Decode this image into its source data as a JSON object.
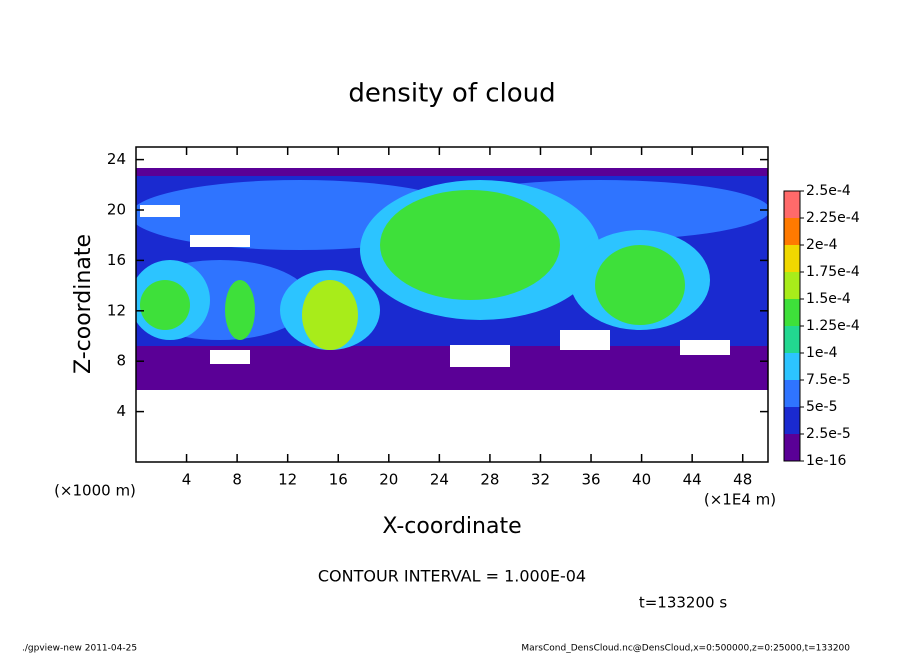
{
  "chart_data": {
    "type": "contour",
    "title": "density of cloud",
    "x_label": "X-coordinate",
    "y_label": "Z-coordinate",
    "x_unit": "(×1E4 m)",
    "y_unit": "(×1000 m)",
    "xlim": [
      0,
      50
    ],
    "xticks": [
      4,
      8,
      12,
      16,
      20,
      24,
      28,
      32,
      36,
      40,
      44,
      48
    ],
    "ylim": [
      0,
      25
    ],
    "yticks": [
      4,
      8,
      12,
      16,
      20,
      24
    ],
    "contour_note": "CONTOUR INTERVAL = 1.000E-04",
    "time_note": "t=133200 s",
    "colorbar": {
      "levels": [
        {
          "value": 1e-16,
          "label": "1e-16"
        },
        {
          "value": 2.5e-05,
          "label": "2.5e-5"
        },
        {
          "value": 5e-05,
          "label": "5e-5"
        },
        {
          "value": 7.5e-05,
          "label": "7.5e-5"
        },
        {
          "value": 0.0001,
          "label": "1e-4"
        },
        {
          "value": 0.000125,
          "label": "1.25e-4"
        },
        {
          "value": 0.00015,
          "label": "1.5e-4"
        },
        {
          "value": 0.000175,
          "label": "1.75e-4"
        },
        {
          "value": 0.0002,
          "label": "2e-4"
        },
        {
          "value": 0.000225,
          "label": "2.25e-4"
        },
        {
          "value": 0.00025,
          "label": "2.5e-4"
        }
      ],
      "colors": [
        "#5a0096",
        "#1a2ad0",
        "#2f74ff",
        "#2cc4ff",
        "#22d890",
        "#3ee03a",
        "#a8ec1a",
        "#f0d800",
        "#ff7a00",
        "#ff6a6a"
      ]
    },
    "footer_left": "./gpview-new  2011-04-25",
    "footer_right": "MarsCond_DensCloud.nc@DensCloud,x=0:500000,z=0:25000,t=133200"
  }
}
